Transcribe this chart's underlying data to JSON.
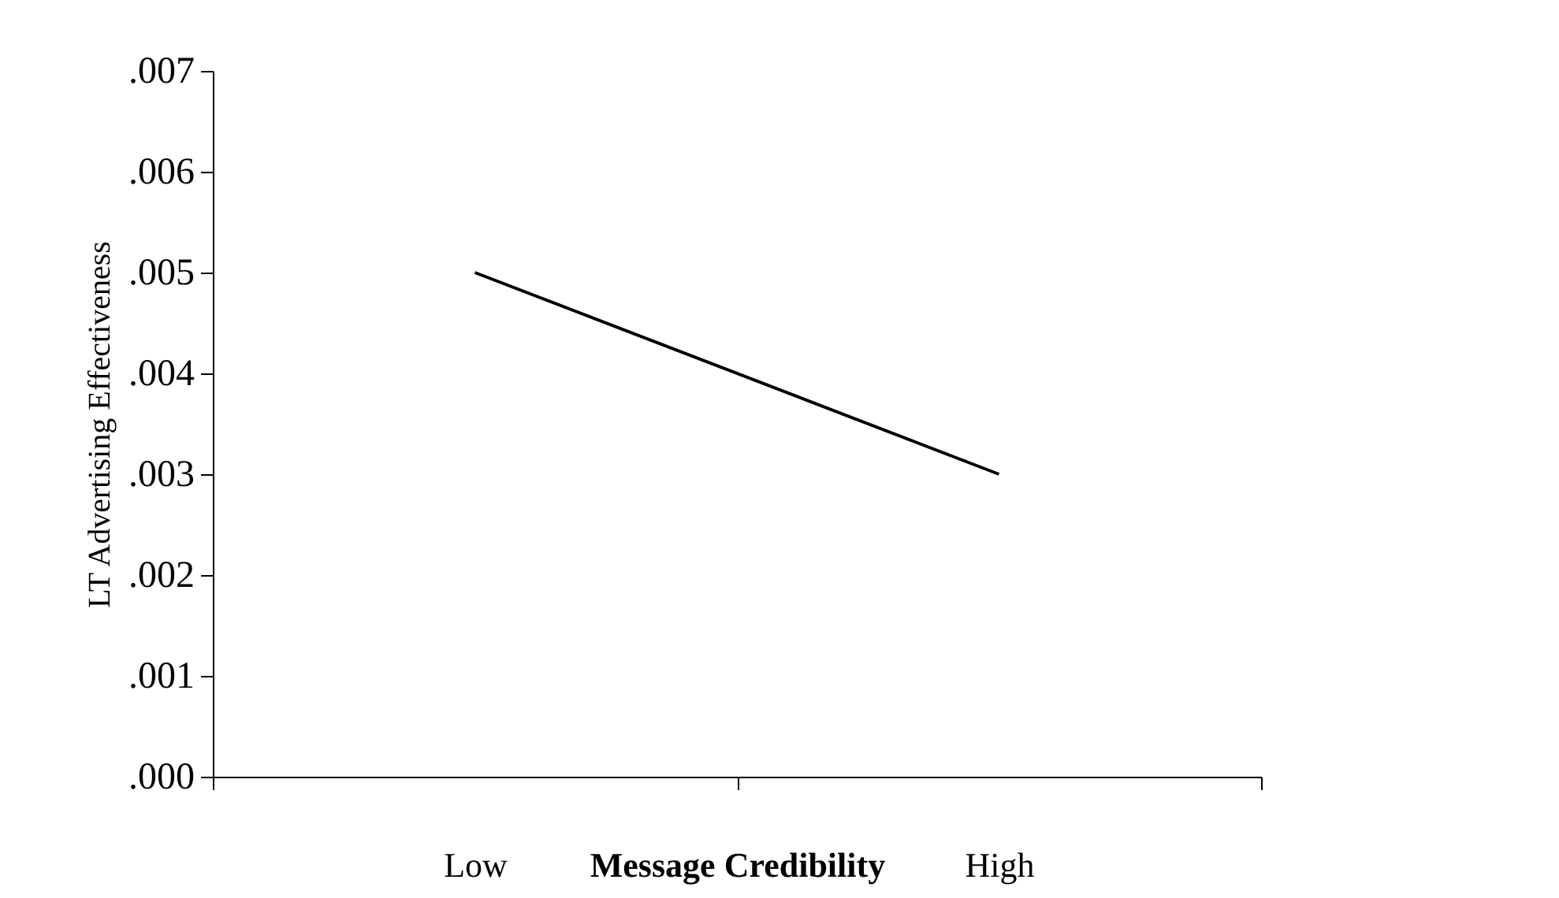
{
  "chart_data": {
    "type": "line",
    "xlabel": "Message Credibility",
    "ylabel": "LT Advertising Effectiveness",
    "categories": [
      "Low",
      "High"
    ],
    "series": [
      {
        "color": "#000000",
        "values": [
          0.005,
          0.003
        ]
      }
    ],
    "ylim": [
      0,
      0.007
    ],
    "yticks": [
      {
        "value": 0,
        "label": ".000"
      },
      {
        "value": 0.001,
        "label": ".001"
      },
      {
        "value": 0.002,
        "label": ".002"
      },
      {
        "value": 0.003,
        "label": ".003"
      },
      {
        "value": 0.004,
        "label": ".004"
      },
      {
        "value": 0.005,
        "label": ".005"
      },
      {
        "value": 0.006,
        "label": ".006"
      },
      {
        "value": 0.007,
        "label": ".007"
      }
    ],
    "grid": false,
    "marker": "none",
    "line_style": "solid"
  }
}
